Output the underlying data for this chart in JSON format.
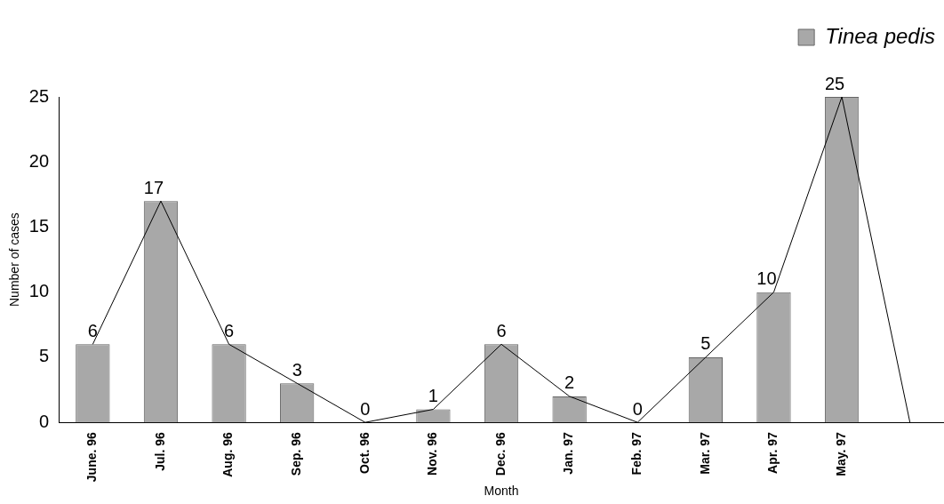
{
  "chart_data": {
    "type": "bar",
    "xlabel": "Month",
    "ylabel": "Number of cases",
    "categories": [
      "June. 96",
      "Jul. 96",
      "Aug. 96",
      "Sep. 96",
      "Oct. 96",
      "Nov. 96",
      "Dec. 96",
      "Jan. 97",
      "Feb. 97",
      "Mar. 97",
      "Apr. 97",
      "May. 97",
      null
    ],
    "series": [
      {
        "name": "Tinea pedis",
        "color": "#a8a8a8",
        "values": [
          6,
          17,
          6,
          3,
          0,
          1,
          6,
          2,
          0,
          5,
          10,
          25,
          null
        ],
        "value_labels": [
          "6",
          "17",
          "6",
          "3",
          "0",
          "1",
          "6",
          "2",
          "0",
          "5",
          "10",
          "25",
          null
        ]
      },
      {
        "type": "line",
        "color": "#000000",
        "values": [
          6,
          17,
          6,
          3,
          0,
          1,
          6,
          2,
          0,
          5,
          10,
          25,
          0
        ]
      }
    ],
    "ylim": [
      0,
      25
    ],
    "yticks": [
      0,
      5,
      10,
      15,
      20,
      25
    ],
    "legend": "top right",
    "grid": false,
    "marker": "none",
    "line_style": "solid"
  }
}
